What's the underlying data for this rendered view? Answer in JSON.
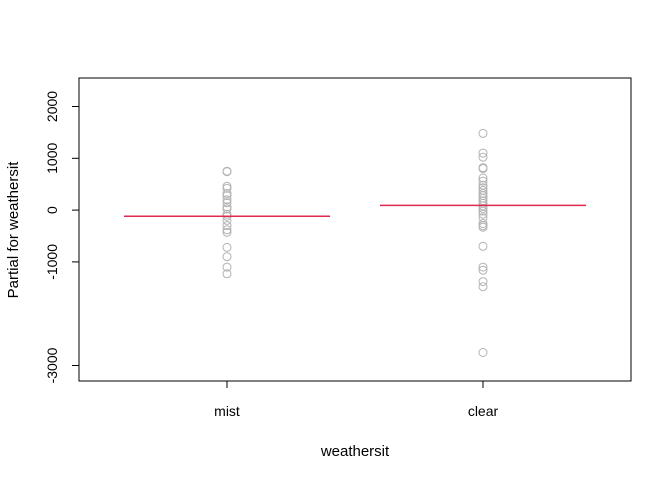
{
  "chart_data": {
    "type": "scatter",
    "title": "",
    "xlabel": "weathersit",
    "ylabel": "Partial for weathersit",
    "categories": [
      "mist",
      "clear"
    ],
    "yticks": [
      -3000,
      -1000,
      0,
      1000,
      2000
    ],
    "ylim": [
      -3300,
      2550
    ],
    "grid": false,
    "point_color": "#b3b3b3",
    "line_color": "#e0284f",
    "fits": [
      {
        "category": "mist",
        "value": -120
      },
      {
        "category": "clear",
        "value": 90
      }
    ],
    "points": [
      {
        "category": "mist",
        "values": [
          750,
          740,
          460,
          420,
          320,
          280,
          200,
          140,
          60,
          20,
          -80,
          -120,
          -200,
          -300,
          -380,
          -430,
          -720,
          -900,
          -1100,
          -1230
        ]
      },
      {
        "category": "clear",
        "values": [
          1480,
          1100,
          1020,
          820,
          800,
          620,
          560,
          480,
          430,
          380,
          320,
          280,
          230,
          180,
          130,
          80,
          30,
          -20,
          -80,
          -150,
          -260,
          -300,
          -330,
          -700,
          -1100,
          -1160,
          -1380,
          -1480,
          -2750
        ]
      }
    ]
  }
}
